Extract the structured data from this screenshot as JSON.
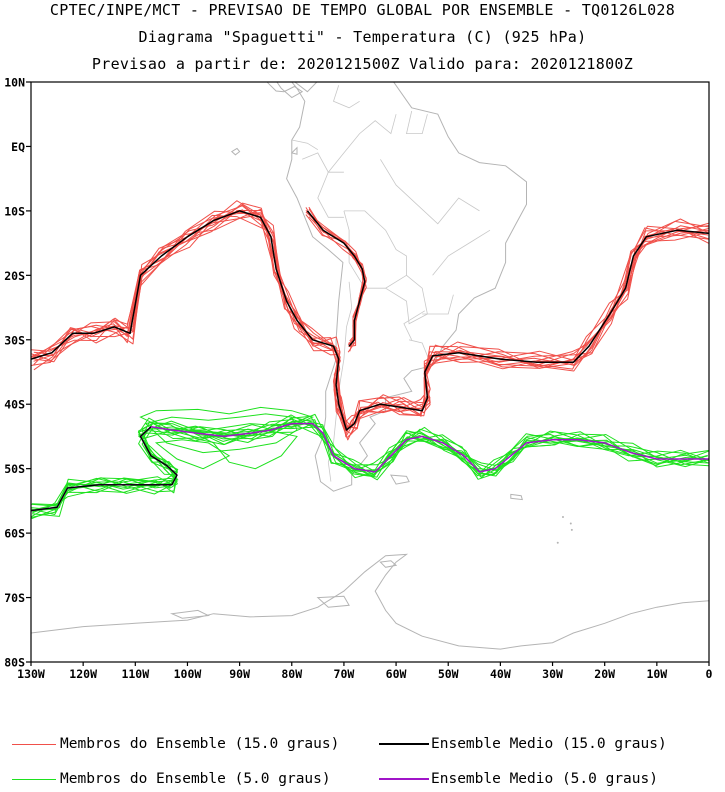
{
  "header": {
    "line1": "CPTEC/INPE/MCT - PREVISAO DE TEMPO GLOBAL POR ENSEMBLE - TQ0126L028",
    "line2": "Diagrama \"Spaguetti\" - Temperatura (C) (925 hPa)",
    "line3": "Previsao a partir de: 2020121500Z  Valido para: 2020121800Z"
  },
  "map": {
    "lat_range": [
      -80,
      10
    ],
    "lon_range": [
      -130,
      0
    ],
    "lat_ticks": [
      {
        "value": 10,
        "label": "10N"
      },
      {
        "value": 0,
        "label": "EQ"
      },
      {
        "value": -10,
        "label": "10S"
      },
      {
        "value": -20,
        "label": "20S"
      },
      {
        "value": -30,
        "label": "30S"
      },
      {
        "value": -40,
        "label": "40S"
      },
      {
        "value": -50,
        "label": "50S"
      },
      {
        "value": -60,
        "label": "60S"
      },
      {
        "value": -70,
        "label": "70S"
      },
      {
        "value": -80,
        "label": "80S"
      }
    ],
    "lon_ticks": [
      {
        "value": -130,
        "label": "130W"
      },
      {
        "value": -120,
        "label": "120W"
      },
      {
        "value": -110,
        "label": "110W"
      },
      {
        "value": -100,
        "label": "100W"
      },
      {
        "value": -90,
        "label": "90W"
      },
      {
        "value": -80,
        "label": "80W"
      },
      {
        "value": -70,
        "label": "70W"
      },
      {
        "value": -60,
        "label": "60W"
      },
      {
        "value": -50,
        "label": "50W"
      },
      {
        "value": -40,
        "label": "40W"
      },
      {
        "value": -30,
        "label": "30W"
      },
      {
        "value": -20,
        "label": "20W"
      },
      {
        "value": -10,
        "label": "10W"
      },
      {
        "value": 0,
        "label": "0"
      }
    ],
    "colors": {
      "coast": "#b4b4b4",
      "members_15": "#f0504a",
      "mean_15": "#000000",
      "members_5": "#1ee11e",
      "mean_5": "#a014c8"
    },
    "mean_15_west": [
      [
        -130,
        -33
      ],
      [
        -126,
        -32
      ],
      [
        -122,
        -29
      ],
      [
        -118,
        -29
      ],
      [
        -114,
        -28
      ],
      [
        -111,
        -29
      ],
      [
        -109,
        -20
      ],
      [
        -105,
        -17
      ],
      [
        -100,
        -14
      ],
      [
        -95,
        -11.5
      ],
      [
        -90,
        -10
      ],
      [
        -86,
        -11
      ],
      [
        -84,
        -14
      ],
      [
        -83,
        -19
      ],
      [
        -81,
        -24
      ],
      [
        -79,
        -27
      ],
      [
        -76,
        -30
      ],
      [
        -72,
        -31
      ],
      [
        -71,
        -33
      ],
      [
        -71.5,
        -37
      ],
      [
        -71,
        -40
      ],
      [
        -69.5,
        -44
      ],
      [
        -68,
        -43
      ],
      [
        -67,
        -41
      ],
      [
        -63,
        -40
      ],
      [
        -59,
        -40.5
      ],
      [
        -55,
        -41
      ],
      [
        -54,
        -39
      ],
      [
        -54.5,
        -35
      ],
      [
        -53,
        -32.5
      ],
      [
        -48,
        -32
      ],
      [
        -40,
        -33
      ],
      [
        -33,
        -33.5
      ],
      [
        -26,
        -33.5
      ],
      [
        -23,
        -31
      ],
      [
        -19,
        -26
      ],
      [
        -16,
        -22
      ],
      [
        -14.5,
        -17
      ],
      [
        -12,
        -14
      ],
      [
        -6,
        -13
      ],
      [
        0,
        -13.5
      ]
    ],
    "mean_15_andes": [
      [
        -77,
        -10
      ],
      [
        -74,
        -13
      ],
      [
        -70,
        -15
      ],
      [
        -68,
        -17
      ],
      [
        -66.5,
        -19
      ],
      [
        -66,
        -21
      ],
      [
        -67,
        -24
      ],
      [
        -68,
        -27
      ],
      [
        -68,
        -30
      ],
      [
        -69,
        -31
      ]
    ],
    "mean_5": [
      [
        -130,
        -56.5
      ],
      [
        -125,
        -56
      ],
      [
        -123,
        -53
      ],
      [
        -117,
        -52.5
      ],
      [
        -112,
        -52.5
      ],
      [
        -106,
        -52.5
      ],
      [
        -103,
        -52.5
      ],
      [
        -102,
        -51
      ],
      [
        -104,
        -49.5
      ],
      [
        -107,
        -48
      ],
      [
        -109,
        -45
      ],
      [
        -107,
        -43.5
      ],
      [
        -103,
        -44
      ],
      [
        -98,
        -44.5
      ],
      [
        -93,
        -45
      ],
      [
        -88,
        -44.5
      ],
      [
        -84,
        -44
      ],
      [
        -80,
        -43
      ],
      [
        -76,
        -43
      ],
      [
        -74,
        -44.5
      ],
      [
        -72,
        -48
      ],
      [
        -68,
        -50
      ],
      [
        -64,
        -50.5
      ],
      [
        -61,
        -48
      ],
      [
        -58,
        -45.5
      ],
      [
        -55,
        -45
      ],
      [
        -51,
        -46
      ],
      [
        -47,
        -48
      ],
      [
        -44,
        -50.5
      ],
      [
        -41,
        -50
      ],
      [
        -38,
        -48
      ],
      [
        -35,
        -46
      ],
      [
        -30,
        -45.5
      ],
      [
        -25,
        -45.5
      ],
      [
        -20,
        -46
      ],
      [
        -15,
        -47.5
      ],
      [
        -10,
        -48.5
      ],
      [
        -5,
        -48.5
      ],
      [
        0,
        -48.5
      ]
    ]
  },
  "legend": {
    "members_15": "Membros do Ensemble (15.0 graus)",
    "mean_15": "Ensemble Medio (15.0 graus)",
    "members_5": "Membros do Ensemble (5.0 graus)",
    "mean_5": "Ensemble Medio (5.0 graus)"
  }
}
